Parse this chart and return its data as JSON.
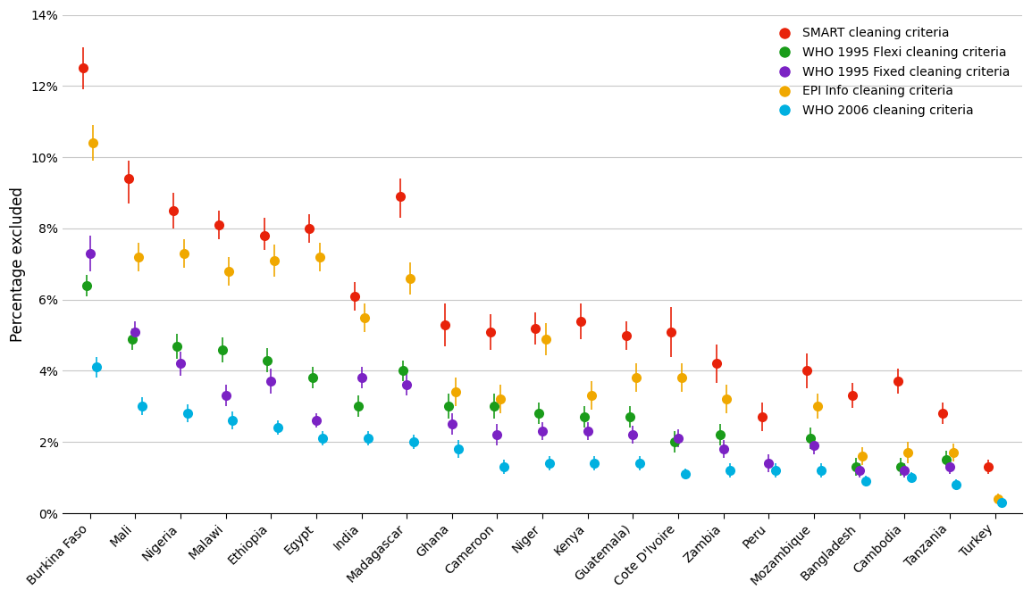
{
  "categories": [
    "Burkina Faso",
    "Mali",
    "Nigeria",
    "Malawi",
    "Ethiopia",
    "Egypt",
    "India",
    "Madagascar",
    "Ghana",
    "Cameroon",
    "Niger",
    "Kenya",
    "Guatemala)",
    "Cote D'Ivoire",
    "Zambia",
    "Peru",
    "Mozambique",
    "Bangladesh",
    "Cambodia",
    "Tanzania",
    "Turkey"
  ],
  "series": {
    "SMART": {
      "color": "#e8220a",
      "values": [
        12.5,
        9.4,
        8.5,
        8.1,
        7.8,
        8.0,
        6.1,
        8.9,
        5.3,
        5.1,
        5.2,
        5.4,
        5.0,
        5.1,
        4.2,
        2.7,
        4.0,
        3.3,
        3.7,
        2.8,
        1.3
      ],
      "yerr_low": [
        0.6,
        0.7,
        0.5,
        0.4,
        0.4,
        0.4,
        0.4,
        0.6,
        0.6,
        0.5,
        0.45,
        0.5,
        0.4,
        0.7,
        0.55,
        0.4,
        0.5,
        0.35,
        0.35,
        0.3,
        0.2
      ],
      "yerr_high": [
        0.6,
        0.5,
        0.5,
        0.4,
        0.5,
        0.4,
        0.4,
        0.5,
        0.6,
        0.5,
        0.45,
        0.5,
        0.4,
        0.7,
        0.55,
        0.4,
        0.5,
        0.35,
        0.35,
        0.3,
        0.2
      ]
    },
    "WHO_flexi": {
      "color": "#1a9c1a",
      "values": [
        6.4,
        4.9,
        4.7,
        4.6,
        4.3,
        3.8,
        3.0,
        4.0,
        3.0,
        3.0,
        2.8,
        2.7,
        2.7,
        2.0,
        2.2,
        null,
        2.1,
        1.3,
        1.3,
        1.5,
        null
      ],
      "yerr_low": [
        0.3,
        0.3,
        0.35,
        0.35,
        0.35,
        0.3,
        0.3,
        0.3,
        0.35,
        0.35,
        0.3,
        0.3,
        0.3,
        0.3,
        0.3,
        null,
        0.3,
        0.25,
        0.25,
        0.25,
        null
      ],
      "yerr_high": [
        0.3,
        0.3,
        0.35,
        0.35,
        0.35,
        0.3,
        0.3,
        0.3,
        0.35,
        0.35,
        0.3,
        0.3,
        0.3,
        0.3,
        0.3,
        null,
        0.3,
        0.25,
        0.25,
        0.25,
        null
      ]
    },
    "WHO_fixed": {
      "color": "#7b22c4",
      "values": [
        7.3,
        5.1,
        4.2,
        3.3,
        3.7,
        2.6,
        3.8,
        3.6,
        2.5,
        2.2,
        2.3,
        2.3,
        2.2,
        2.1,
        1.8,
        1.4,
        1.9,
        1.2,
        1.2,
        1.3,
        null
      ],
      "yerr_low": [
        0.5,
        0.3,
        0.35,
        0.3,
        0.35,
        0.2,
        0.3,
        0.3,
        0.3,
        0.3,
        0.25,
        0.25,
        0.25,
        0.25,
        0.25,
        0.25,
        0.25,
        0.2,
        0.2,
        0.2,
        null
      ],
      "yerr_high": [
        0.5,
        0.3,
        0.35,
        0.3,
        0.35,
        0.2,
        0.3,
        0.3,
        0.3,
        0.3,
        0.25,
        0.25,
        0.25,
        0.25,
        0.25,
        0.25,
        0.25,
        0.2,
        0.2,
        0.2,
        null
      ]
    },
    "EPI_Info": {
      "color": "#f0a800",
      "values": [
        10.4,
        7.2,
        7.3,
        6.8,
        7.1,
        7.2,
        5.5,
        6.6,
        3.4,
        3.2,
        4.9,
        3.3,
        3.8,
        3.8,
        3.2,
        null,
        3.0,
        1.6,
        1.7,
        1.7,
        0.4
      ],
      "yerr_low": [
        0.5,
        0.4,
        0.4,
        0.4,
        0.45,
        0.4,
        0.4,
        0.45,
        0.4,
        0.4,
        0.45,
        0.4,
        0.4,
        0.4,
        0.4,
        null,
        0.35,
        0.25,
        0.3,
        0.25,
        0.15
      ],
      "yerr_high": [
        0.5,
        0.4,
        0.4,
        0.4,
        0.45,
        0.4,
        0.4,
        0.45,
        0.4,
        0.4,
        0.45,
        0.4,
        0.4,
        0.4,
        0.4,
        null,
        0.35,
        0.25,
        0.3,
        0.25,
        0.15
      ]
    },
    "WHO_2006": {
      "color": "#00b0e0",
      "values": [
        4.1,
        3.0,
        2.8,
        2.6,
        2.4,
        2.1,
        2.1,
        2.0,
        1.8,
        1.3,
        1.4,
        1.4,
        1.4,
        1.1,
        1.2,
        1.2,
        1.2,
        0.9,
        1.0,
        0.8,
        0.3
      ],
      "yerr_low": [
        0.3,
        0.25,
        0.25,
        0.25,
        0.2,
        0.2,
        0.2,
        0.2,
        0.25,
        0.2,
        0.2,
        0.2,
        0.2,
        0.15,
        0.2,
        0.2,
        0.2,
        0.15,
        0.15,
        0.15,
        0.1
      ],
      "yerr_high": [
        0.3,
        0.25,
        0.25,
        0.25,
        0.2,
        0.2,
        0.2,
        0.2,
        0.25,
        0.2,
        0.2,
        0.2,
        0.2,
        0.15,
        0.2,
        0.2,
        0.2,
        0.15,
        0.15,
        0.15,
        0.1
      ]
    }
  },
  "series_order": [
    "SMART",
    "WHO_flexi",
    "WHO_fixed",
    "EPI_Info",
    "WHO_2006"
  ],
  "offsets": [
    -0.15,
    -0.075,
    0.0,
    0.075,
    0.15
  ],
  "legend_labels": [
    "SMART cleaning criteria",
    "WHO 1995 Flexi cleaning criteria",
    "WHO 1995 Fixed cleaning criteria",
    "EPI Info cleaning criteria",
    "WHO 2006 cleaning criteria"
  ],
  "ylabel": "Percentage excluded",
  "ylim": [
    0,
    14
  ],
  "yticks": [
    0,
    2,
    4,
    6,
    8,
    10,
    12,
    14
  ],
  "ytick_labels": [
    "0%",
    "2%",
    "4%",
    "6%",
    "8%",
    "10%",
    "12%",
    "14%"
  ],
  "markersize": 8,
  "capsize": 3,
  "elinewidth": 1.2,
  "grid_color": "#c8c8c8",
  "tick_fontsize": 10,
  "ylabel_fontsize": 12,
  "legend_fontsize": 10
}
